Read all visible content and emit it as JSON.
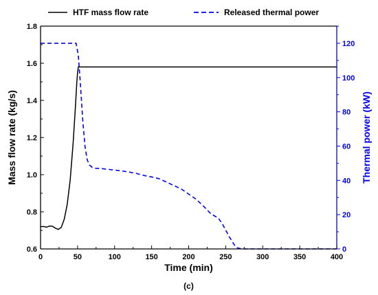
{
  "chart_data": {
    "type": "line",
    "subfigure_label": "(c)",
    "xlabel": "Time (min)",
    "ylabel_left": "Mass flow rate (kg/s)",
    "ylabel_right": "Thermal power (kW)",
    "xlim": [
      0,
      400
    ],
    "ylim_left": [
      0.6,
      1.8
    ],
    "ylim_right": [
      0,
      130
    ],
    "x_ticks": [
      0,
      50,
      100,
      150,
      200,
      250,
      300,
      350,
      400
    ],
    "y_left_ticks": [
      0.6,
      0.8,
      1.0,
      1.2,
      1.4,
      1.6,
      1.8
    ],
    "y_left_tick_labels": [
      "0.6",
      "0.8",
      "1.0",
      "1.2",
      "1.4",
      "1.6",
      "1.8"
    ],
    "y_right_ticks": [
      0,
      20,
      40,
      60,
      80,
      100,
      120
    ],
    "grid": false,
    "legend_position": "top",
    "colors": {
      "mass_flow": "#000000",
      "thermal": "#0000ee"
    },
    "series": [
      {
        "name": "HTF mass flow rate",
        "axis": "left",
        "style": "solid",
        "x": [
          0,
          4,
          8,
          12,
          16,
          20,
          24,
          28,
          32,
          36,
          40,
          44,
          47,
          49,
          50,
          51,
          52,
          60,
          100,
          200,
          300,
          400
        ],
        "y": [
          0.72,
          0.721,
          0.717,
          0.723,
          0.722,
          0.712,
          0.705,
          0.716,
          0.76,
          0.84,
          0.97,
          1.17,
          1.36,
          1.5,
          1.55,
          1.58,
          1.58,
          1.58,
          1.58,
          1.58,
          1.58,
          1.58
        ]
      },
      {
        "name": "Released thermal power",
        "axis": "right",
        "style": "dashed",
        "x": [
          0,
          48,
          51,
          54,
          57,
          60,
          63,
          66,
          70,
          75,
          80,
          90,
          100,
          110,
          120,
          130,
          140,
          150,
          160,
          170,
          180,
          190,
          200,
          210,
          220,
          230,
          240,
          245,
          250,
          255,
          260,
          263,
          266,
          270,
          275,
          280,
          300,
          350,
          400
        ],
        "y": [
          120,
          120,
          113,
          95,
          75,
          60,
          52,
          49,
          47.5,
          47,
          47,
          46.5,
          46,
          45.5,
          44.8,
          44,
          42.8,
          42,
          41,
          39,
          37,
          35,
          32,
          29,
          25,
          20.5,
          18,
          15,
          11,
          7,
          3.5,
          1.5,
          0.6,
          0.2,
          0,
          0,
          0,
          0,
          0
        ]
      }
    ]
  }
}
